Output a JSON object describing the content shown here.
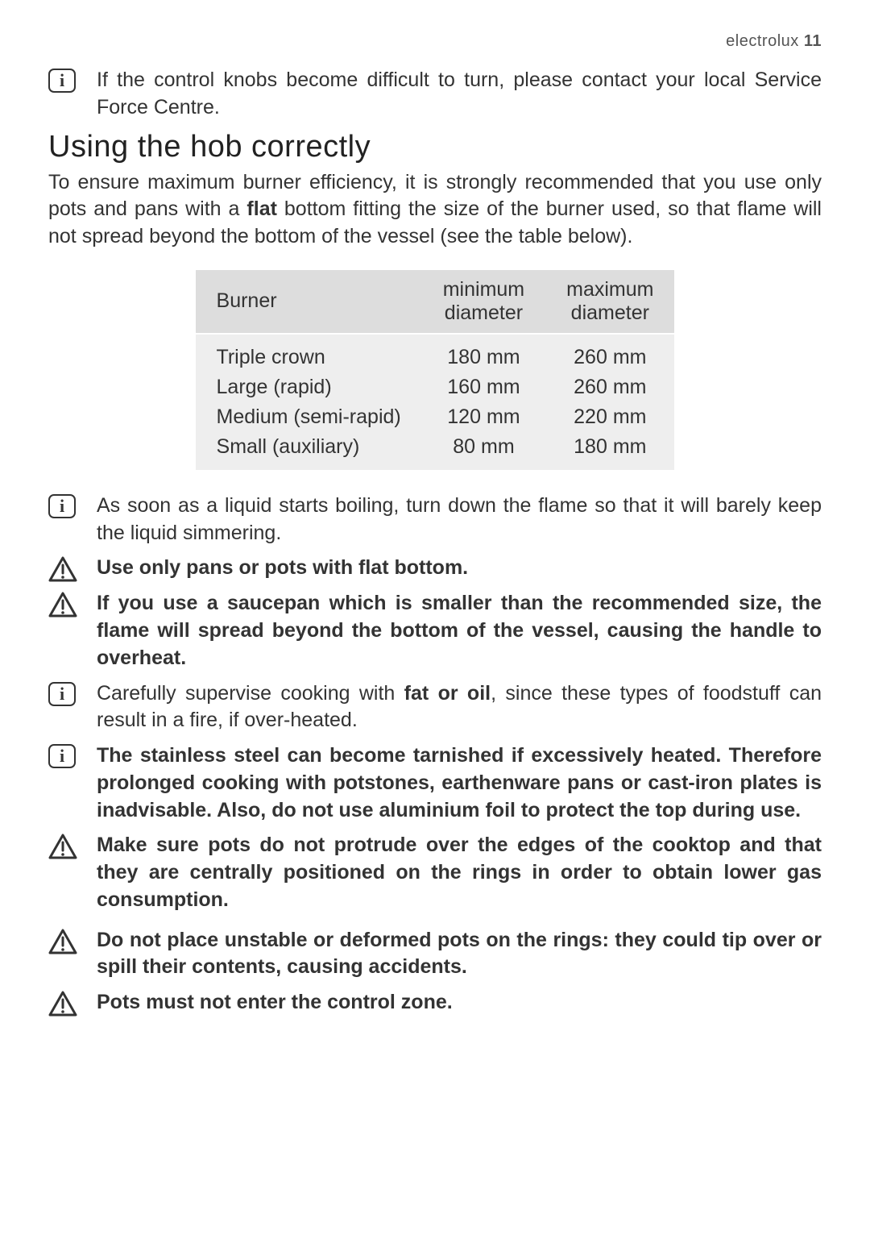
{
  "header": {
    "brand": "electrolux",
    "page": "11"
  },
  "notes": {
    "knobs": "If the control knobs become difficult to turn, please contact your local Service Force Centre.",
    "simmer": "As soon as a liquid starts boiling, turn down the flame so that it will barely keep the liquid simmering.",
    "flat_bottom": "Use only pans or pots with flat bottom.",
    "saucepan_small": "If you use a saucepan which is smaller than the recommended size, the flame will spread beyond the bottom of the vessel, causing the handle to overheat.",
    "fat_oil_pre": "Carefully supervise cooking with ",
    "fat_oil_bold": "fat or oil",
    "fat_oil_post": ", since these types of foodstuff can result in a fire, if over-heated.",
    "stainless": "The stainless steel can become tarnished if excessively heated. Therefore prolonged cooking with potstones, earthenware pans or cast-iron plates is inadvisable. Also, do not use aluminium foil to protect the top during use.",
    "protrude": "Make sure pots do not protrude over the edges of the cooktop and that they are centrally positioned on the rings in order to obtain lower gas consumption.",
    "unstable": "Do not place unstable or deformed pots on the rings: they could tip over or spill their contents, causing accidents.",
    "control_zone": "Pots must not enter the control zone."
  },
  "heading": "Using the hob correctly",
  "intro_pre": "To ensure maximum burner efficiency, it is strongly recommended that you use only pots and pans with a ",
  "intro_bold": "flat",
  "intro_post": " bottom fitting the size of the burner used, so that flame will not spread beyond the bottom of the vessel (see the table below).",
  "table": {
    "columns": [
      "Burner",
      "minimum diameter",
      "maximum diameter"
    ],
    "rows": [
      [
        "Triple crown",
        "180 mm",
        "260 mm"
      ],
      [
        "Large (rapid)",
        "160 mm",
        "260 mm"
      ],
      [
        "Medium (semi-rapid)",
        "120 mm",
        "220 mm"
      ],
      [
        "Small (auxiliary)",
        "80 mm",
        "180 mm"
      ]
    ],
    "header_bg": "#dddddd",
    "body_bg": "#eeeeee",
    "font_size": 25
  },
  "colors": {
    "text": "#333333",
    "background": "#ffffff",
    "icon_stroke": "#333333"
  }
}
